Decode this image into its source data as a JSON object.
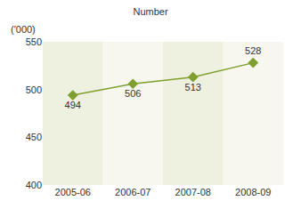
{
  "chart_data": {
    "type": "line",
    "title": "Number",
    "y_label": "('000)",
    "categories": [
      "2005-06",
      "2006-07",
      "2007-08",
      "2008-09"
    ],
    "values": [
      494,
      506,
      513,
      528
    ],
    "color": "#7f9f2f",
    "marker": "diamond",
    "ylim": [
      400,
      550
    ],
    "yticks": [
      400,
      450,
      500,
      550
    ],
    "grid": false,
    "data_labels": true
  }
}
